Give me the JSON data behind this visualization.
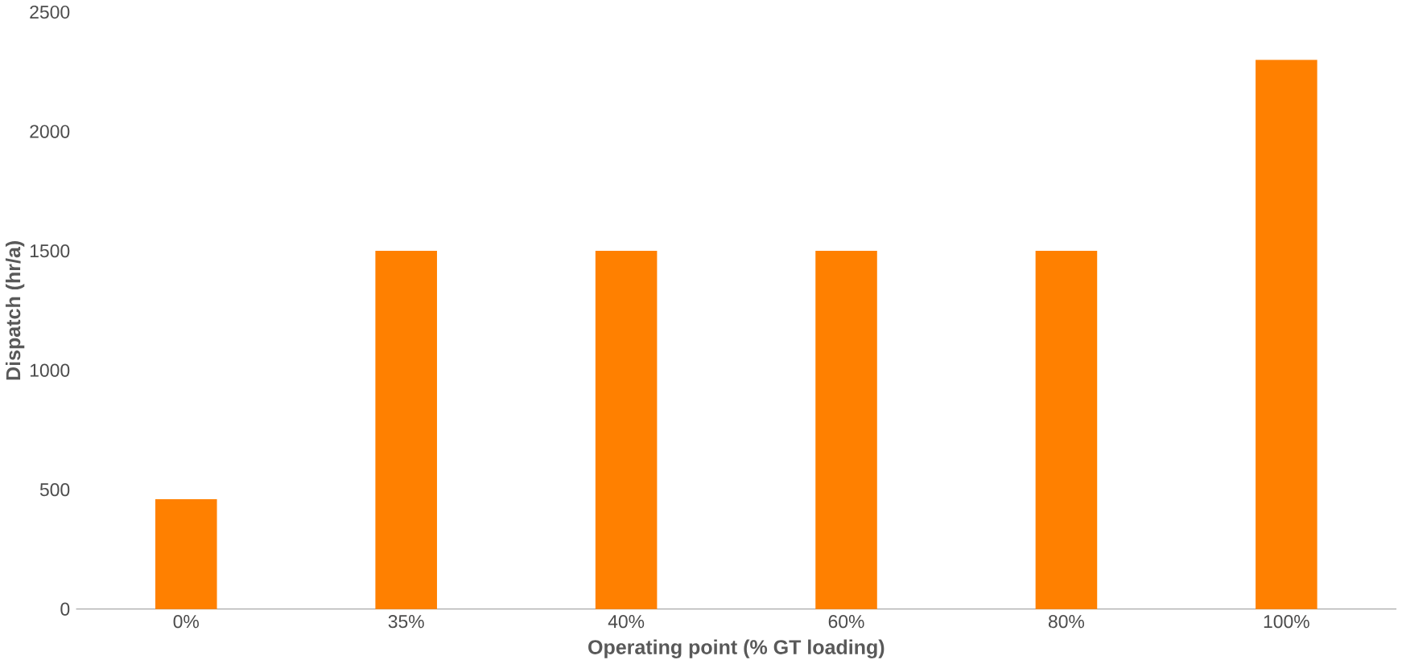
{
  "chart_data": {
    "type": "bar",
    "xlabel": "Operating point (% GT loading)",
    "ylabel": "Dispatch (hr/a)",
    "categories": [
      "0%",
      "35%",
      "40%",
      "60%",
      "80%",
      "100%"
    ],
    "values": [
      460,
      1500,
      1500,
      1500,
      1500,
      2300
    ],
    "color": "#ff8000",
    "ylim": [
      0,
      2500
    ],
    "yticks": [
      0,
      500,
      1000,
      1500,
      2000,
      2500
    ],
    "grid": false
  }
}
